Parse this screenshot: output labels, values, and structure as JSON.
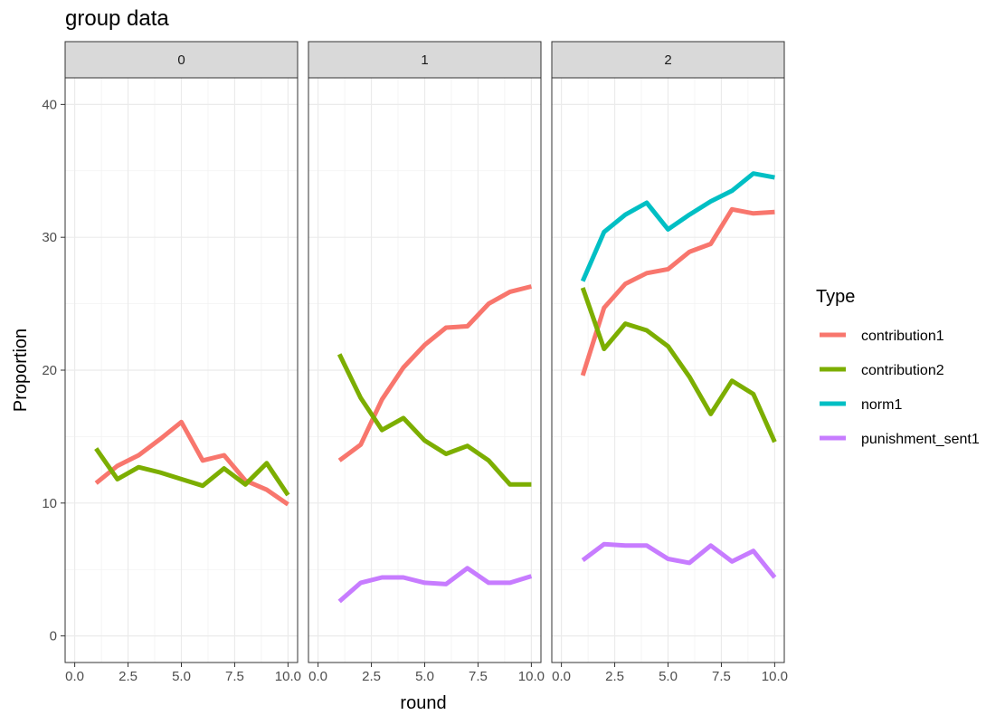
{
  "chart_data": {
    "type": "line",
    "title": "group data",
    "xlabel": "round",
    "ylabel": "Proportion",
    "xlim": [
      -0.45,
      10.45
    ],
    "ylim": [
      -2,
      42
    ],
    "x_ticks": [
      0,
      2.5,
      5,
      7.5,
      10
    ],
    "x_tick_labels": [
      "0.0",
      "2.5",
      "5.0",
      "7.5",
      "10.0"
    ],
    "y_ticks": [
      0,
      10,
      20,
      30,
      40
    ],
    "y_tick_labels": [
      "0",
      "10",
      "20",
      "30",
      "40"
    ],
    "grid": true,
    "legend": {
      "title": "Type",
      "placement": "right",
      "entries": [
        {
          "name": "contribution1",
          "color": "#F8766D"
        },
        {
          "name": "contribution2",
          "color": "#7CAE00"
        },
        {
          "name": "norm1",
          "color": "#00BFC4"
        },
        {
          "name": "punishment_sent1",
          "color": "#C77CFF"
        }
      ]
    },
    "facets": [
      {
        "label": "0",
        "series": [
          {
            "name": "contribution1",
            "x": [
              1,
              2,
              3,
              4,
              5,
              6,
              7,
              8,
              9,
              10
            ],
            "y": [
              11.5,
              12.8,
              13.6,
              14.8,
              16.1,
              13.2,
              13.6,
              11.7,
              11.0,
              9.9
            ]
          },
          {
            "name": "contribution2",
            "x": [
              1,
              2,
              3,
              4,
              5,
              6,
              7,
              8,
              9,
              10
            ],
            "y": [
              14.1,
              11.8,
              12.7,
              12.3,
              11.8,
              11.3,
              12.6,
              11.4,
              13.0,
              10.6
            ]
          }
        ]
      },
      {
        "label": "1",
        "series": [
          {
            "name": "contribution1",
            "x": [
              1,
              2,
              3,
              4,
              5,
              6,
              7,
              8,
              9,
              10
            ],
            "y": [
              13.2,
              14.4,
              17.8,
              20.2,
              21.9,
              23.2,
              23.3,
              25.0,
              25.9,
              26.3
            ]
          },
          {
            "name": "contribution2",
            "x": [
              1,
              2,
              3,
              4,
              5,
              6,
              7,
              8,
              9,
              10
            ],
            "y": [
              21.2,
              17.9,
              15.5,
              16.4,
              14.7,
              13.7,
              14.3,
              13.2,
              11.4,
              11.4
            ]
          },
          {
            "name": "punishment_sent1",
            "x": [
              1,
              2,
              3,
              4,
              5,
              6,
              7,
              8,
              9,
              10
            ],
            "y": [
              2.6,
              4.0,
              4.4,
              4.4,
              4.0,
              3.9,
              5.1,
              4.0,
              4.0,
              4.5
            ]
          }
        ]
      },
      {
        "label": "2",
        "series": [
          {
            "name": "contribution1",
            "x": [
              1,
              2,
              3,
              4,
              5,
              6,
              7,
              8,
              9,
              10
            ],
            "y": [
              19.6,
              24.7,
              26.5,
              27.3,
              27.6,
              28.9,
              29.5,
              32.1,
              31.8,
              31.9
            ]
          },
          {
            "name": "contribution2",
            "x": [
              1,
              2,
              3,
              4,
              5,
              6,
              7,
              8,
              9,
              10
            ],
            "y": [
              26.2,
              21.6,
              23.5,
              23.0,
              21.8,
              19.5,
              16.7,
              19.2,
              18.2,
              14.6
            ]
          },
          {
            "name": "norm1",
            "x": [
              1,
              2,
              3,
              4,
              5,
              6,
              7,
              8,
              9,
              10
            ],
            "y": [
              26.7,
              30.4,
              31.7,
              32.6,
              30.6,
              31.7,
              32.7,
              33.5,
              34.8,
              34.5
            ]
          },
          {
            "name": "punishment_sent1",
            "x": [
              1,
              2,
              3,
              4,
              5,
              6,
              7,
              8,
              9,
              10
            ],
            "y": [
              5.7,
              6.9,
              6.8,
              6.8,
              5.8,
              5.5,
              6.8,
              5.6,
              6.4,
              4.4
            ]
          }
        ]
      }
    ]
  }
}
